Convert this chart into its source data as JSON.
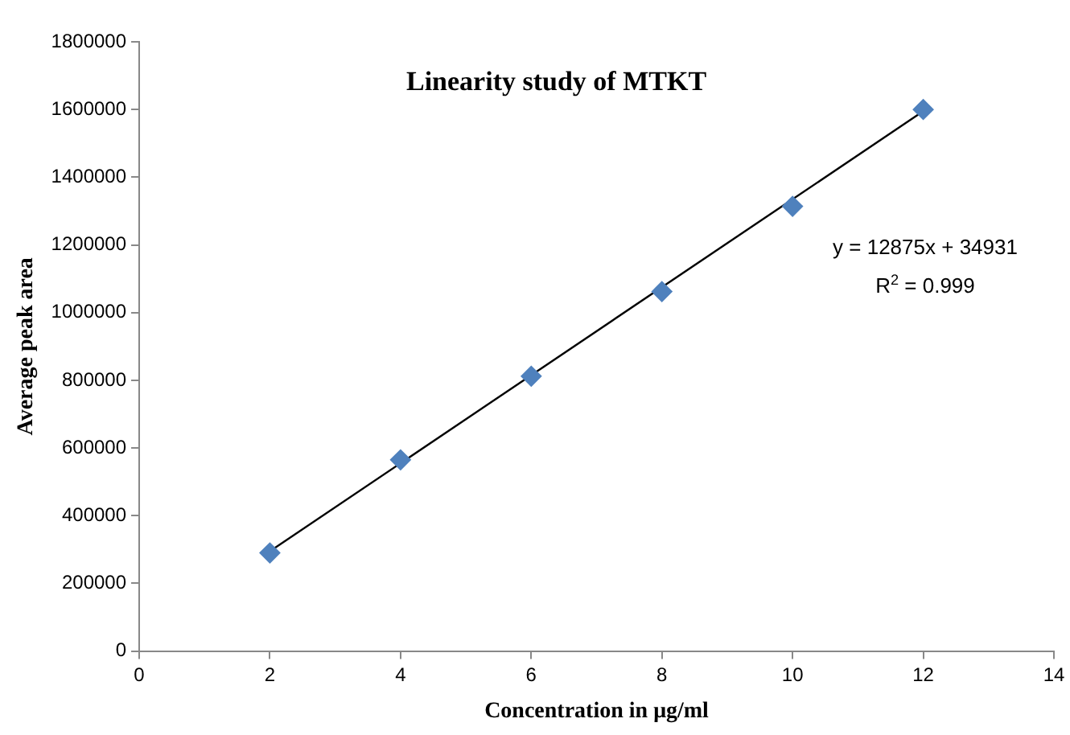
{
  "chart_data": {
    "type": "scatter",
    "title": "Linearity study of MTKT",
    "xlabel": "Concentration in μg/ml",
    "ylabel": "Average peak area",
    "x": [
      2,
      4,
      6,
      8,
      10,
      12
    ],
    "series": [
      {
        "type": "scatter",
        "color": "#4f81bd",
        "marker": "diamond",
        "values": [
          290000,
          565000,
          812000,
          1062000,
          1314000,
          1600000
        ]
      },
      {
        "type": "line",
        "color": "#000000",
        "x": [
          2,
          12
        ],
        "values": [
          295000,
          1595000
        ],
        "marker": "none",
        "line_style": "solid"
      }
    ],
    "xlim": [
      0,
      14
    ],
    "xticks": [
      0,
      2,
      4,
      6,
      8,
      10,
      12,
      14
    ],
    "ylim": [
      0,
      1800000
    ],
    "yticks": [
      0,
      200000,
      400000,
      600000,
      800000,
      1000000,
      1200000,
      1400000,
      1600000,
      1800000
    ],
    "annotations": [
      "y = 12875x + 34931",
      "R$^{2}$ = 0.999"
    ],
    "grid": false,
    "legend": false
  }
}
